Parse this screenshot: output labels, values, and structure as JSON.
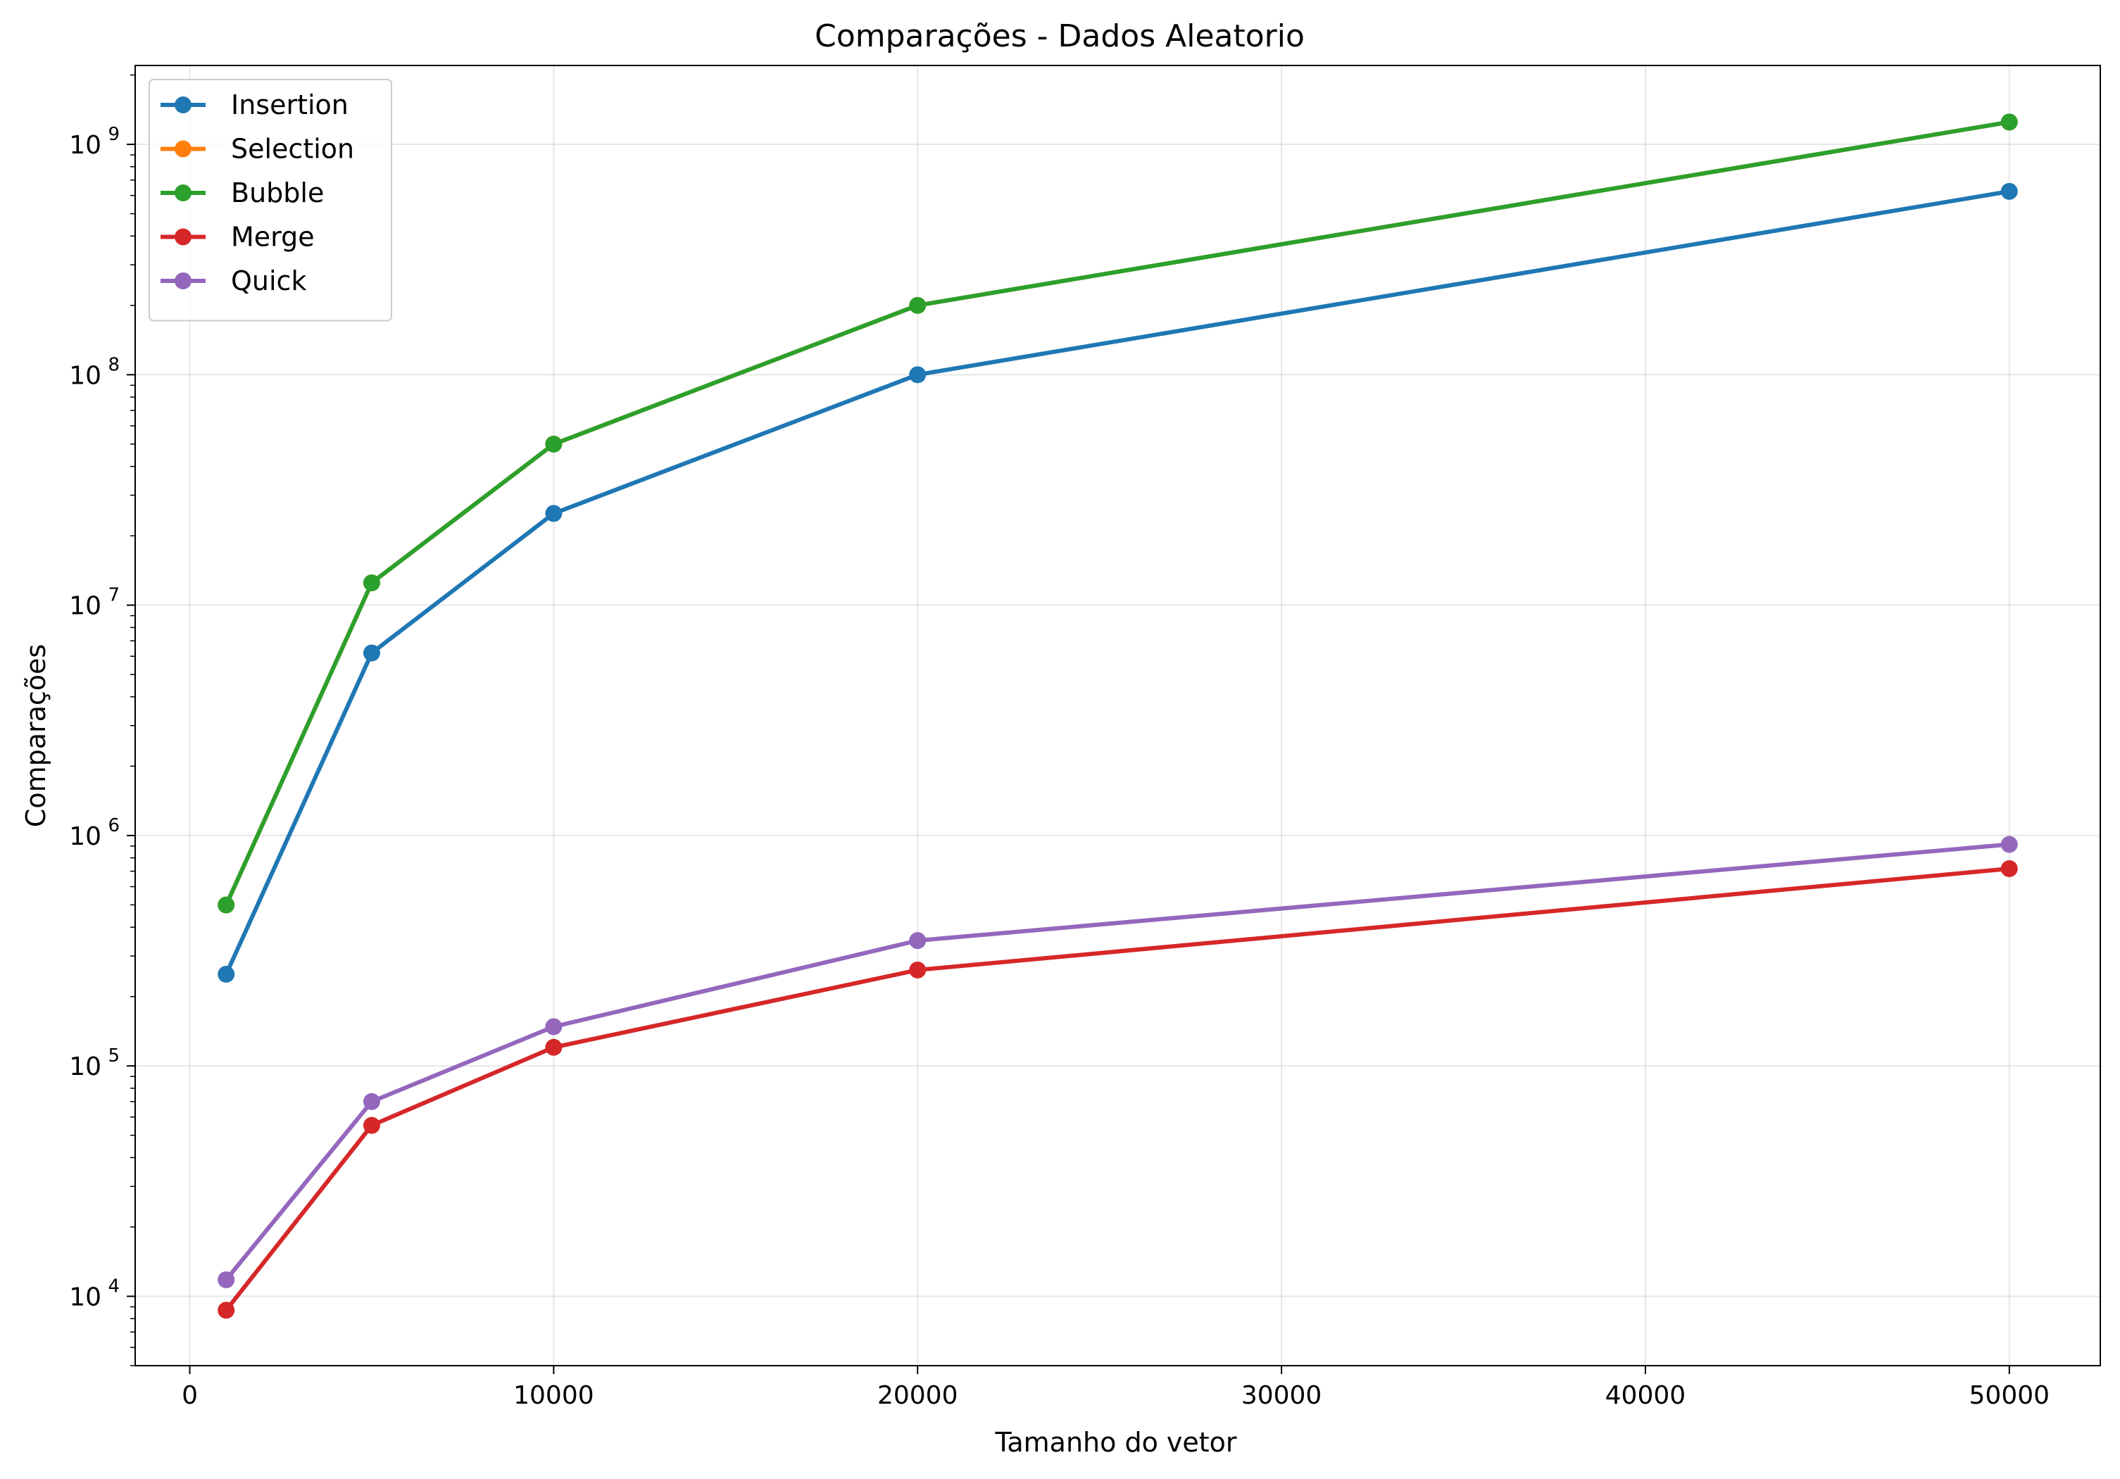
{
  "chart_data": {
    "type": "line",
    "title": "Comparações - Dados Aleatorio",
    "xlabel": "Tamanho do vetor",
    "ylabel": "Comparações",
    "yscale": "log",
    "xlim": [
      -1500,
      52500
    ],
    "ylim": [
      5000,
      2200000000
    ],
    "x_ticks": [
      0,
      10000,
      20000,
      30000,
      40000,
      50000
    ],
    "x_tick_labels": [
      "0",
      "10000",
      "20000",
      "30000",
      "40000",
      "50000"
    ],
    "y_ticks": [
      10000,
      100000,
      1000000,
      10000000,
      100000000,
      1000000000
    ],
    "y_tick_labels": [
      {
        "base": "10",
        "exp": "4"
      },
      {
        "base": "10",
        "exp": "5"
      },
      {
        "base": "10",
        "exp": "6"
      },
      {
        "base": "10",
        "exp": "7"
      },
      {
        "base": "10",
        "exp": "8"
      },
      {
        "base": "10",
        "exp": "9"
      }
    ],
    "grid": true,
    "legend_position": "top-left",
    "x": [
      1000,
      5000,
      10000,
      20000,
      50000
    ],
    "series": [
      {
        "name": "Insertion",
        "color": "#1f77b4",
        "values": [
          250000,
          6200000,
          25000000,
          100000000,
          625000000
        ]
      },
      {
        "name": "Selection",
        "color": "#ff7f0e",
        "values": [
          499500,
          12497500,
          49995000,
          199990000,
          1249975000
        ]
      },
      {
        "name": "Bubble",
        "color": "#2ca02c",
        "values": [
          499500,
          12497500,
          49995000,
          199990000,
          1249975000
        ]
      },
      {
        "name": "Merge",
        "color": "#d62728",
        "values": [
          8700,
          55200,
          120400,
          260800,
          718000
        ]
      },
      {
        "name": "Quick",
        "color": "#9467bd",
        "values": [
          11800,
          70000,
          148000,
          350000,
          915000
        ]
      }
    ]
  }
}
